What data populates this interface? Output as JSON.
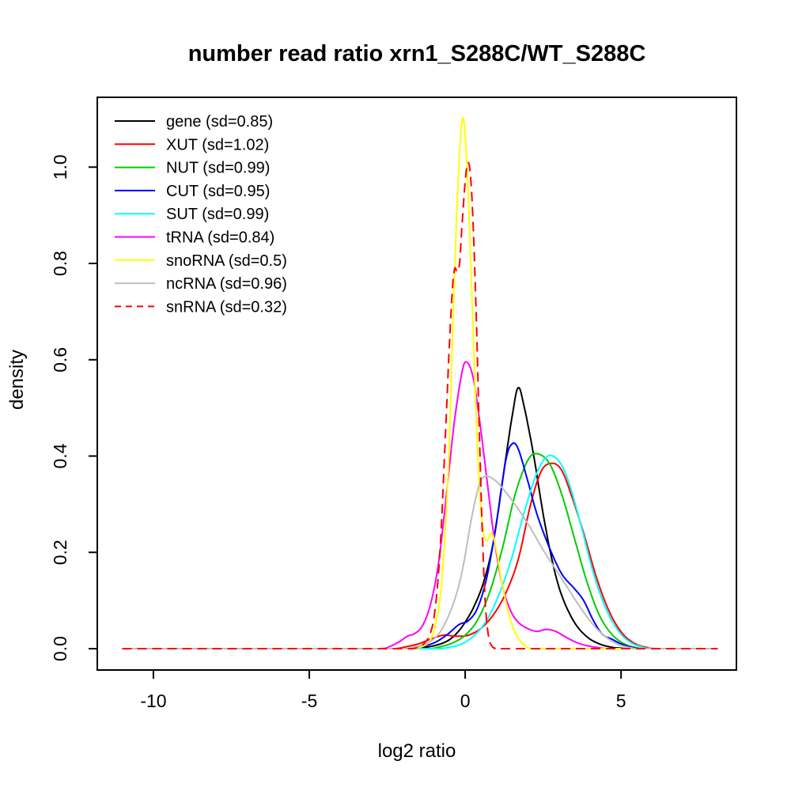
{
  "chart_data": {
    "type": "line",
    "title": "number read ratio xrn1_S288C/WT_S288C",
    "xlabel": "log2 ratio",
    "ylabel": "density",
    "grid": false,
    "legend_position": "top-left",
    "x_axis": {
      "range": [
        -11.8,
        8.7
      ],
      "ticks": [
        -10,
        -5,
        0,
        5
      ],
      "tick_labels": [
        "-10",
        "-5",
        "0",
        "5"
      ]
    },
    "y_axis": {
      "range": [
        -0.0443,
        1.145
      ],
      "ticks": [
        0.0,
        0.2,
        0.4,
        0.6,
        0.8,
        1.0
      ],
      "tick_labels": [
        "0.0",
        "0.2",
        "0.4",
        "0.6",
        "0.8",
        "1.0"
      ]
    },
    "series": [
      {
        "name": "gene",
        "sd": 0.85,
        "label": "gene (sd=0.85)",
        "color": "#000000",
        "dashed": false,
        "points": [
          [
            -11,
            0
          ],
          [
            -1.8,
            0
          ],
          [
            -1.4,
            0.002
          ],
          [
            -1.0,
            0.006
          ],
          [
            -0.6,
            0.015
          ],
          [
            -0.3,
            0.03
          ],
          [
            0,
            0.055
          ],
          [
            0.3,
            0.09
          ],
          [
            0.6,
            0.14
          ],
          [
            0.9,
            0.22
          ],
          [
            1.2,
            0.35
          ],
          [
            1.5,
            0.48
          ],
          [
            1.7,
            0.542
          ],
          [
            1.9,
            0.5
          ],
          [
            2.2,
            0.4
          ],
          [
            2.5,
            0.28
          ],
          [
            2.8,
            0.18
          ],
          [
            3.1,
            0.11
          ],
          [
            3.5,
            0.055
          ],
          [
            3.9,
            0.025
          ],
          [
            4.3,
            0.01
          ],
          [
            4.7,
            0.003
          ],
          [
            5.0,
            0.001
          ],
          [
            5.3,
            0
          ],
          [
            8.1,
            0
          ]
        ]
      },
      {
        "name": "XUT",
        "sd": 1.02,
        "label": "XUT (sd=1.02)",
        "color": "#ff0000",
        "dashed": false,
        "points": [
          [
            -11,
            0
          ],
          [
            -2.3,
            0
          ],
          [
            -1.9,
            0.004
          ],
          [
            -1.5,
            0.01
          ],
          [
            -1.1,
            0.02
          ],
          [
            -0.7,
            0.028
          ],
          [
            -0.3,
            0.026
          ],
          [
            0.1,
            0.028
          ],
          [
            0.5,
            0.042
          ],
          [
            0.9,
            0.07
          ],
          [
            1.3,
            0.115
          ],
          [
            1.7,
            0.185
          ],
          [
            2.1,
            0.3
          ],
          [
            2.45,
            0.37
          ],
          [
            2.8,
            0.385
          ],
          [
            3.1,
            0.37
          ],
          [
            3.4,
            0.32
          ],
          [
            3.8,
            0.24
          ],
          [
            4.2,
            0.15
          ],
          [
            4.6,
            0.08
          ],
          [
            5.0,
            0.035
          ],
          [
            5.4,
            0.012
          ],
          [
            5.8,
            0.003
          ],
          [
            6.2,
            0
          ],
          [
            8.1,
            0
          ]
        ]
      },
      {
        "name": "NUT",
        "sd": 0.99,
        "label": "NUT (sd=0.99)",
        "color": "#00cd00",
        "dashed": false,
        "points": [
          [
            -11,
            0
          ],
          [
            -1.2,
            0
          ],
          [
            -0.8,
            0.004
          ],
          [
            -0.4,
            0.012
          ],
          [
            0,
            0.028
          ],
          [
            0.4,
            0.06
          ],
          [
            0.8,
            0.12
          ],
          [
            1.2,
            0.21
          ],
          [
            1.6,
            0.32
          ],
          [
            2.0,
            0.39
          ],
          [
            2.3,
            0.405
          ],
          [
            2.7,
            0.385
          ],
          [
            3.1,
            0.32
          ],
          [
            3.5,
            0.23
          ],
          [
            3.9,
            0.14
          ],
          [
            4.3,
            0.07
          ],
          [
            4.7,
            0.03
          ],
          [
            5.1,
            0.01
          ],
          [
            5.5,
            0.002
          ],
          [
            5.8,
            0
          ],
          [
            8.1,
            0
          ]
        ]
      },
      {
        "name": "CUT",
        "sd": 0.95,
        "label": "CUT (sd=0.95)",
        "color": "#0000ff",
        "dashed": false,
        "points": [
          [
            -11,
            0
          ],
          [
            -1.8,
            0
          ],
          [
            -1.4,
            0.004
          ],
          [
            -1.0,
            0.012
          ],
          [
            -0.6,
            0.028
          ],
          [
            -0.2,
            0.05
          ],
          [
            0.1,
            0.058
          ],
          [
            0.4,
            0.085
          ],
          [
            0.7,
            0.15
          ],
          [
            1.0,
            0.26
          ],
          [
            1.3,
            0.39
          ],
          [
            1.5,
            0.425
          ],
          [
            1.7,
            0.415
          ],
          [
            2.0,
            0.35
          ],
          [
            2.3,
            0.28
          ],
          [
            2.7,
            0.21
          ],
          [
            3.1,
            0.155
          ],
          [
            3.5,
            0.125
          ],
          [
            3.8,
            0.1
          ],
          [
            4.1,
            0.06
          ],
          [
            4.4,
            0.03
          ],
          [
            4.7,
            0.02
          ],
          [
            5.0,
            0.01
          ],
          [
            5.4,
            0.002
          ],
          [
            5.7,
            0
          ],
          [
            8.1,
            0
          ]
        ]
      },
      {
        "name": "SUT",
        "sd": 0.99,
        "label": "SUT (sd=0.99)",
        "color": "#00ffff",
        "dashed": false,
        "points": [
          [
            -11,
            0
          ],
          [
            -0.9,
            0
          ],
          [
            -0.5,
            0.003
          ],
          [
            -0.1,
            0.01
          ],
          [
            0.3,
            0.028
          ],
          [
            0.7,
            0.06
          ],
          [
            1.1,
            0.115
          ],
          [
            1.5,
            0.19
          ],
          [
            1.9,
            0.285
          ],
          [
            2.3,
            0.365
          ],
          [
            2.65,
            0.4
          ],
          [
            3.0,
            0.39
          ],
          [
            3.3,
            0.35
          ],
          [
            3.7,
            0.26
          ],
          [
            4.1,
            0.16
          ],
          [
            4.5,
            0.085
          ],
          [
            4.9,
            0.038
          ],
          [
            5.3,
            0.013
          ],
          [
            5.7,
            0.003
          ],
          [
            6.0,
            0
          ],
          [
            8.1,
            0
          ]
        ]
      },
      {
        "name": "tRNA",
        "sd": 0.84,
        "label": "tRNA (sd=0.84)",
        "color": "#ff00ff",
        "dashed": false,
        "points": [
          [
            -11,
            0
          ],
          [
            -2.7,
            0
          ],
          [
            -2.4,
            0.005
          ],
          [
            -2.1,
            0.015
          ],
          [
            -1.85,
            0.026
          ],
          [
            -1.6,
            0.032
          ],
          [
            -1.35,
            0.05
          ],
          [
            -1.1,
            0.095
          ],
          [
            -0.85,
            0.18
          ],
          [
            -0.6,
            0.32
          ],
          [
            -0.35,
            0.47
          ],
          [
            -0.1,
            0.575
          ],
          [
            0.05,
            0.595
          ],
          [
            0.25,
            0.565
          ],
          [
            0.45,
            0.48
          ],
          [
            0.7,
            0.35
          ],
          [
            0.95,
            0.22
          ],
          [
            1.2,
            0.13
          ],
          [
            1.45,
            0.08
          ],
          [
            1.7,
            0.055
          ],
          [
            2.0,
            0.042
          ],
          [
            2.3,
            0.036
          ],
          [
            2.6,
            0.04
          ],
          [
            2.9,
            0.036
          ],
          [
            3.2,
            0.025
          ],
          [
            3.6,
            0.012
          ],
          [
            4.0,
            0.005
          ],
          [
            4.4,
            0.001
          ],
          [
            4.7,
            0
          ],
          [
            8.1,
            0
          ]
        ]
      },
      {
        "name": "snoRNA",
        "sd": 0.5,
        "label": "snoRNA (sd=0.5)",
        "color": "#ffff00",
        "dashed": false,
        "points": [
          [
            -11,
            0
          ],
          [
            -1.7,
            0
          ],
          [
            -1.4,
            0.004
          ],
          [
            -1.15,
            0.015
          ],
          [
            -0.95,
            0.05
          ],
          [
            -0.75,
            0.14
          ],
          [
            -0.55,
            0.36
          ],
          [
            -0.38,
            0.7
          ],
          [
            -0.22,
            0.98
          ],
          [
            -0.08,
            1.103
          ],
          [
            0.05,
            1.01
          ],
          [
            0.18,
            0.8
          ],
          [
            0.32,
            0.54
          ],
          [
            0.46,
            0.33
          ],
          [
            0.58,
            0.245
          ],
          [
            0.7,
            0.225
          ],
          [
            0.85,
            0.24
          ],
          [
            1.0,
            0.205
          ],
          [
            1.2,
            0.13
          ],
          [
            1.45,
            0.06
          ],
          [
            1.7,
            0.022
          ],
          [
            1.95,
            0.005
          ],
          [
            2.2,
            0
          ],
          [
            8.1,
            0
          ]
        ]
      },
      {
        "name": "ncRNA",
        "sd": 0.96,
        "label": "ncRNA (sd=0.96)",
        "color": "#bebebe",
        "dashed": false,
        "points": [
          [
            -11,
            0
          ],
          [
            -2.0,
            0
          ],
          [
            -1.6,
            0.004
          ],
          [
            -1.2,
            0.012
          ],
          [
            -0.8,
            0.035
          ],
          [
            -0.4,
            0.09
          ],
          [
            -0.1,
            0.16
          ],
          [
            0.2,
            0.27
          ],
          [
            0.45,
            0.34
          ],
          [
            0.65,
            0.358
          ],
          [
            0.95,
            0.35
          ],
          [
            1.3,
            0.325
          ],
          [
            1.7,
            0.29
          ],
          [
            2.1,
            0.25
          ],
          [
            2.5,
            0.205
          ],
          [
            2.9,
            0.165
          ],
          [
            3.3,
            0.125
          ],
          [
            3.7,
            0.085
          ],
          [
            4.1,
            0.05
          ],
          [
            4.5,
            0.025
          ],
          [
            4.9,
            0.009
          ],
          [
            5.3,
            0.002
          ],
          [
            5.6,
            0
          ],
          [
            8.1,
            0
          ]
        ]
      },
      {
        "name": "snRNA",
        "sd": 0.32,
        "label": "snRNA (sd=0.32)",
        "color": "#ff0000",
        "dashed": true,
        "points": [
          [
            -11,
            0
          ],
          [
            -1.75,
            0
          ],
          [
            -1.5,
            0.004
          ],
          [
            -1.3,
            0.012
          ],
          [
            -1.1,
            0.035
          ],
          [
            -0.95,
            0.09
          ],
          [
            -0.8,
            0.21
          ],
          [
            -0.65,
            0.42
          ],
          [
            -0.5,
            0.64
          ],
          [
            -0.4,
            0.755
          ],
          [
            -0.33,
            0.79
          ],
          [
            -0.26,
            0.783
          ],
          [
            -0.18,
            0.8
          ],
          [
            -0.1,
            0.88
          ],
          [
            0,
            0.97
          ],
          [
            0.08,
            1.008
          ],
          [
            0.16,
            0.99
          ],
          [
            0.25,
            0.89
          ],
          [
            0.35,
            0.7
          ],
          [
            0.45,
            0.46
          ],
          [
            0.55,
            0.24
          ],
          [
            0.65,
            0.09
          ],
          [
            0.75,
            0.025
          ],
          [
            0.85,
            0.006
          ],
          [
            0.95,
            0.001
          ],
          [
            1.05,
            0
          ],
          [
            8.1,
            0
          ]
        ]
      }
    ]
  }
}
